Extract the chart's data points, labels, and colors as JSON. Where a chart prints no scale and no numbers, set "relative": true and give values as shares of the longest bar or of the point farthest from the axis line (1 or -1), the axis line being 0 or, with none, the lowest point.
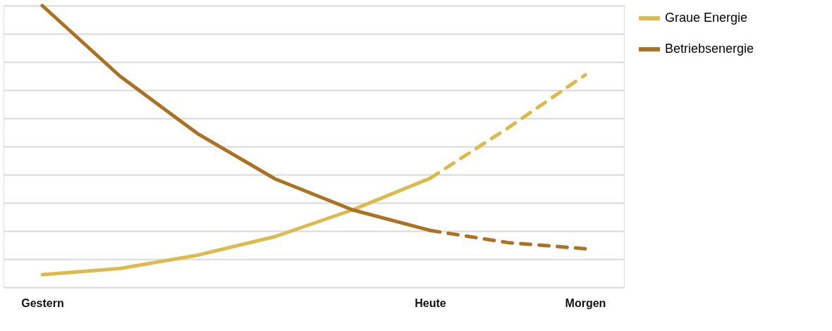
{
  "chart_data": {
    "type": "line",
    "relative": true,
    "categories": [
      "Gestern",
      null,
      null,
      null,
      null,
      "Heute",
      null,
      "Morgen"
    ],
    "series": [
      {
        "name": "Graue Energie",
        "color": "#dcbb4c",
        "line_style": "solid",
        "values": [
          0.045,
          0.067,
          0.114,
          0.18,
          0.275,
          0.387,
          null,
          null
        ]
      },
      {
        "name": "Betriebsenergie",
        "color": "#ac7224",
        "line_style": "solid",
        "values": [
          1,
          0.75,
          0.546,
          0.385,
          0.275,
          0.202,
          null,
          null
        ]
      },
      {
        "color": "#dcbb4c",
        "line_style": "dashed",
        "values": [
          null,
          null,
          null,
          null,
          null,
          0.387,
          0.565,
          0.754
        ]
      },
      {
        "color": "#ac7224",
        "line_style": "dashed",
        "values": [
          null,
          null,
          null,
          null,
          null,
          0.202,
          0.159,
          0.137
        ]
      }
    ],
    "grid": "y",
    "legend": "right"
  }
}
